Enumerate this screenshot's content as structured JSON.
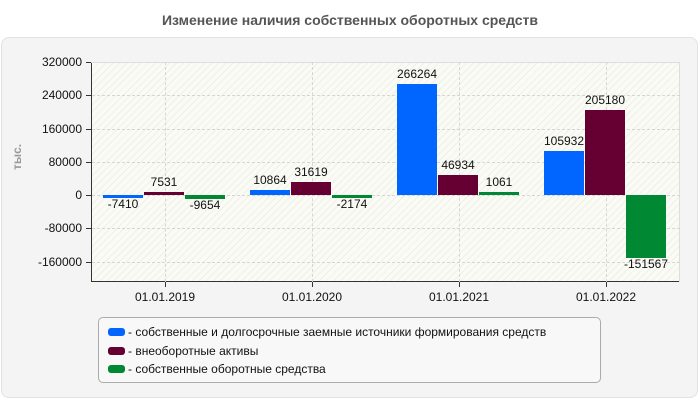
{
  "title": "Изменение наличия собственных оборотных средств",
  "y_axis_title": "тыс.",
  "y_ticks": [
    "320000",
    "240000",
    "160000",
    "80000",
    "0",
    "-80000",
    "-160000"
  ],
  "x_labels": [
    "01.01.2019",
    "01.01.2020",
    "01.01.2021",
    "01.01.2022"
  ],
  "colors": {
    "series1": "#0066ff",
    "series2": "#660033",
    "series3": "#008833"
  },
  "legend": [
    {
      "label": "- собственные и долгосрочные заемные источники формирования средств",
      "color": "#0066ff"
    },
    {
      "label": "- внеоборотные активы",
      "color": "#660033"
    },
    {
      "label": "- собственные оборотные средства",
      "color": "#008833"
    }
  ],
  "value_labels": {
    "s1": [
      "-7410",
      "10864",
      "266264",
      "105932"
    ],
    "s2": [
      "7531",
      "31619",
      "46934",
      "205180"
    ],
    "s3": [
      "-9654",
      "-2174",
      "1061",
      "-151567"
    ]
  },
  "chart_data": {
    "type": "bar",
    "title": "Изменение наличия собственных оборотных средств",
    "xlabel": "",
    "ylabel": "тыс.",
    "categories": [
      "01.01.2019",
      "01.01.2020",
      "01.01.2021",
      "01.01.2022"
    ],
    "series": [
      {
        "name": "собственные и долгосрочные заемные источники формирования средств",
        "color": "#0066ff",
        "values": [
          -7410,
          10864,
          266264,
          105932
        ]
      },
      {
        "name": "внеоборотные активы",
        "color": "#660033",
        "values": [
          7531,
          31619,
          46934,
          205180
        ]
      },
      {
        "name": "собственные оборотные средства",
        "color": "#008833",
        "values": [
          -9654,
          -2174,
          1061,
          -151567
        ]
      }
    ],
    "ylim": [
      -208000,
      320000
    ],
    "yticks": [
      320000,
      240000,
      160000,
      80000,
      0,
      -80000,
      -160000
    ],
    "grid": true,
    "legend_position": "bottom"
  }
}
